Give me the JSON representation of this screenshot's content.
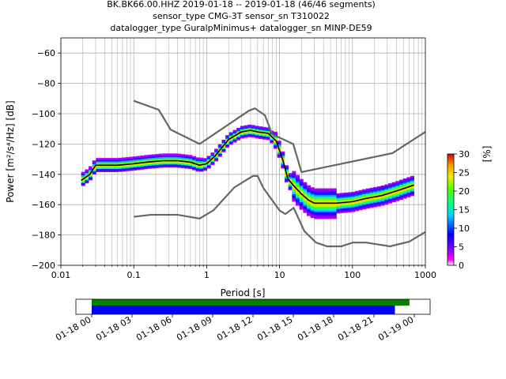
{
  "title_lines": [
    "BK.BK66.00.HHZ   2019-01-18 -- 2019-01-18  (46/46 segments)",
    "sensor_type CMG-3T sensor_sn T310022",
    "datalogger_type GuralpMinimus+ datalogger_sn MINP-DE59"
  ],
  "chart_data": {
    "type": "heatmap",
    "xlabel": "Period [s]",
    "ylabel": "Power [m²/s⁴/Hz] [dB]",
    "x_scale": "log",
    "xlim": [
      0.01,
      1000
    ],
    "ylim": [
      -200,
      -50
    ],
    "x_ticks": [
      0.01,
      0.1,
      1,
      10,
      100,
      1000
    ],
    "x_tick_labels": [
      "0.01",
      "0.1",
      "1",
      "10",
      "100",
      "1000"
    ],
    "y_ticks": [
      -200,
      -180,
      -160,
      -140,
      -120,
      -100,
      -80,
      -60
    ],
    "y_tick_labels": [
      "−200",
      "−180",
      "−160",
      "−140",
      "−120",
      "−100",
      "−80",
      "−60"
    ],
    "grid": true,
    "mean_psd": {
      "color": "#000000",
      "x": [
        0.019,
        0.025,
        0.03,
        0.04,
        0.06,
        0.1,
        0.15,
        0.25,
        0.4,
        0.6,
        0.8,
        1.0,
        1.3,
        2.0,
        3.0,
        4.0,
        5.0,
        7.0,
        9.0,
        11.0,
        13.0,
        16.0,
        20.0,
        25.0,
        30.0,
        40.0,
        60.0,
        100.0,
        150.0,
        250.0,
        400.0,
        700.0
      ],
      "y": [
        -144,
        -140,
        -134,
        -134,
        -134,
        -133,
        -132,
        -131,
        -131,
        -132,
        -134,
        -133,
        -128,
        -117,
        -112,
        -111,
        -112,
        -113,
        -118,
        -130,
        -143,
        -148,
        -153,
        -157,
        -159,
        -159,
        -159,
        -158,
        -156,
        -154,
        -151,
        -147
      ]
    },
    "noise_models": {
      "color": "#666666",
      "high": {
        "x": [
          0.1,
          0.22,
          0.32,
          0.8,
          3.8,
          4.6,
          6.3,
          7.9,
          15.4,
          20.0,
          354.8,
          1000
        ],
        "y": [
          -91.5,
          -97.4,
          -110.5,
          -120.0,
          -98.0,
          -96.5,
          -101.0,
          -113.5,
          -120.0,
          -138.5,
          -126.0,
          -112.0
        ]
      },
      "low": {
        "x": [
          0.1,
          0.17,
          0.4,
          0.8,
          1.24,
          2.4,
          4.3,
          5.0,
          6.0,
          10.0,
          12.0,
          15.6,
          21.9,
          31.6,
          45.0,
          70.0,
          101.0,
          154.0,
          328.0,
          600.0,
          1000
        ],
        "y": [
          -168.0,
          -166.7,
          -166.7,
          -169.2,
          -163.7,
          -148.6,
          -141.1,
          -141.1,
          -149.0,
          -163.8,
          -166.2,
          -162.1,
          -177.5,
          -185.0,
          -187.5,
          -187.5,
          -185.0,
          -185.0,
          -187.5,
          -184.4,
          -178.0
        ]
      }
    },
    "colorbar": {
      "label": "[%]",
      "min": 0,
      "max": 30,
      "ticks": [
        0,
        5,
        10,
        15,
        20,
        25,
        30
      ]
    }
  },
  "coverage": {
    "x_tick_labels": [
      "01-18 00",
      "01-18 03",
      "01-18 06",
      "01-18 09",
      "01-18 12",
      "01-18 15",
      "01-18 18",
      "01-18 21",
      "01-19 00"
    ],
    "hours_total": 24,
    "data_coverage_fraction": 0.985,
    "psd_coverage_fraction": 0.94,
    "colors": {
      "data": "#008000",
      "psd": "#0000ff"
    }
  }
}
